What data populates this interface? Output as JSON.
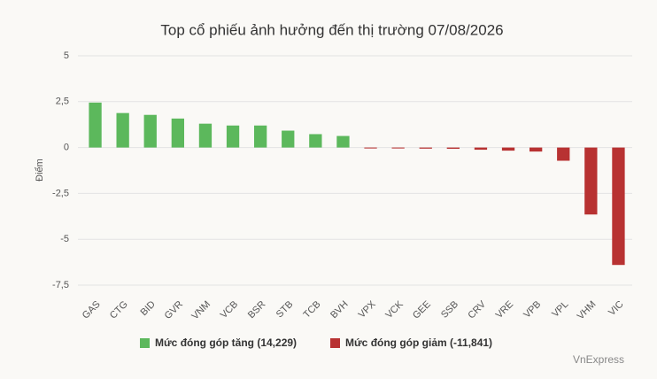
{
  "chart_data": {
    "type": "bar",
    "title": "Top cổ phiếu ảnh hưởng đến thị trường 07/08/2026",
    "y_label": "Điểm",
    "source": "VnExpress",
    "categories": [
      "GAS",
      "CTG",
      "BID",
      "GVR",
      "VNM",
      "VCB",
      "BSR",
      "STB",
      "TCB",
      "BVH",
      "VPX",
      "VCK",
      "GEE",
      "SSB",
      "CRV",
      "VRE",
      "VPB",
      "VPL",
      "VHM",
      "VIC"
    ],
    "series": [
      {
        "name": "Mức đóng góp tăng (14,229)",
        "color": "#5cb85c",
        "values": [
          2.45,
          1.88,
          1.78,
          1.58,
          1.3,
          1.2,
          1.2,
          0.92,
          0.73,
          0.63,
          null,
          null,
          null,
          null,
          null,
          null,
          null,
          null,
          null,
          null
        ]
      },
      {
        "name": "Mức đóng góp giảm (-11,841)",
        "color": "#b83232",
        "values": [
          null,
          null,
          null,
          null,
          null,
          null,
          null,
          null,
          null,
          null,
          -0.05,
          -0.05,
          -0.06,
          -0.07,
          -0.12,
          -0.17,
          -0.22,
          -0.72,
          -3.65,
          -6.4
        ]
      }
    ],
    "ylim": [
      -7.5,
      5
    ],
    "yticks": [
      5,
      {
        "value": 2.5,
        "label": "2,5"
      },
      0,
      {
        "value": -2.5,
        "label": "-2,5"
      },
      -5,
      {
        "value": -7.5,
        "label": "-7,5"
      }
    ],
    "grid": true
  }
}
